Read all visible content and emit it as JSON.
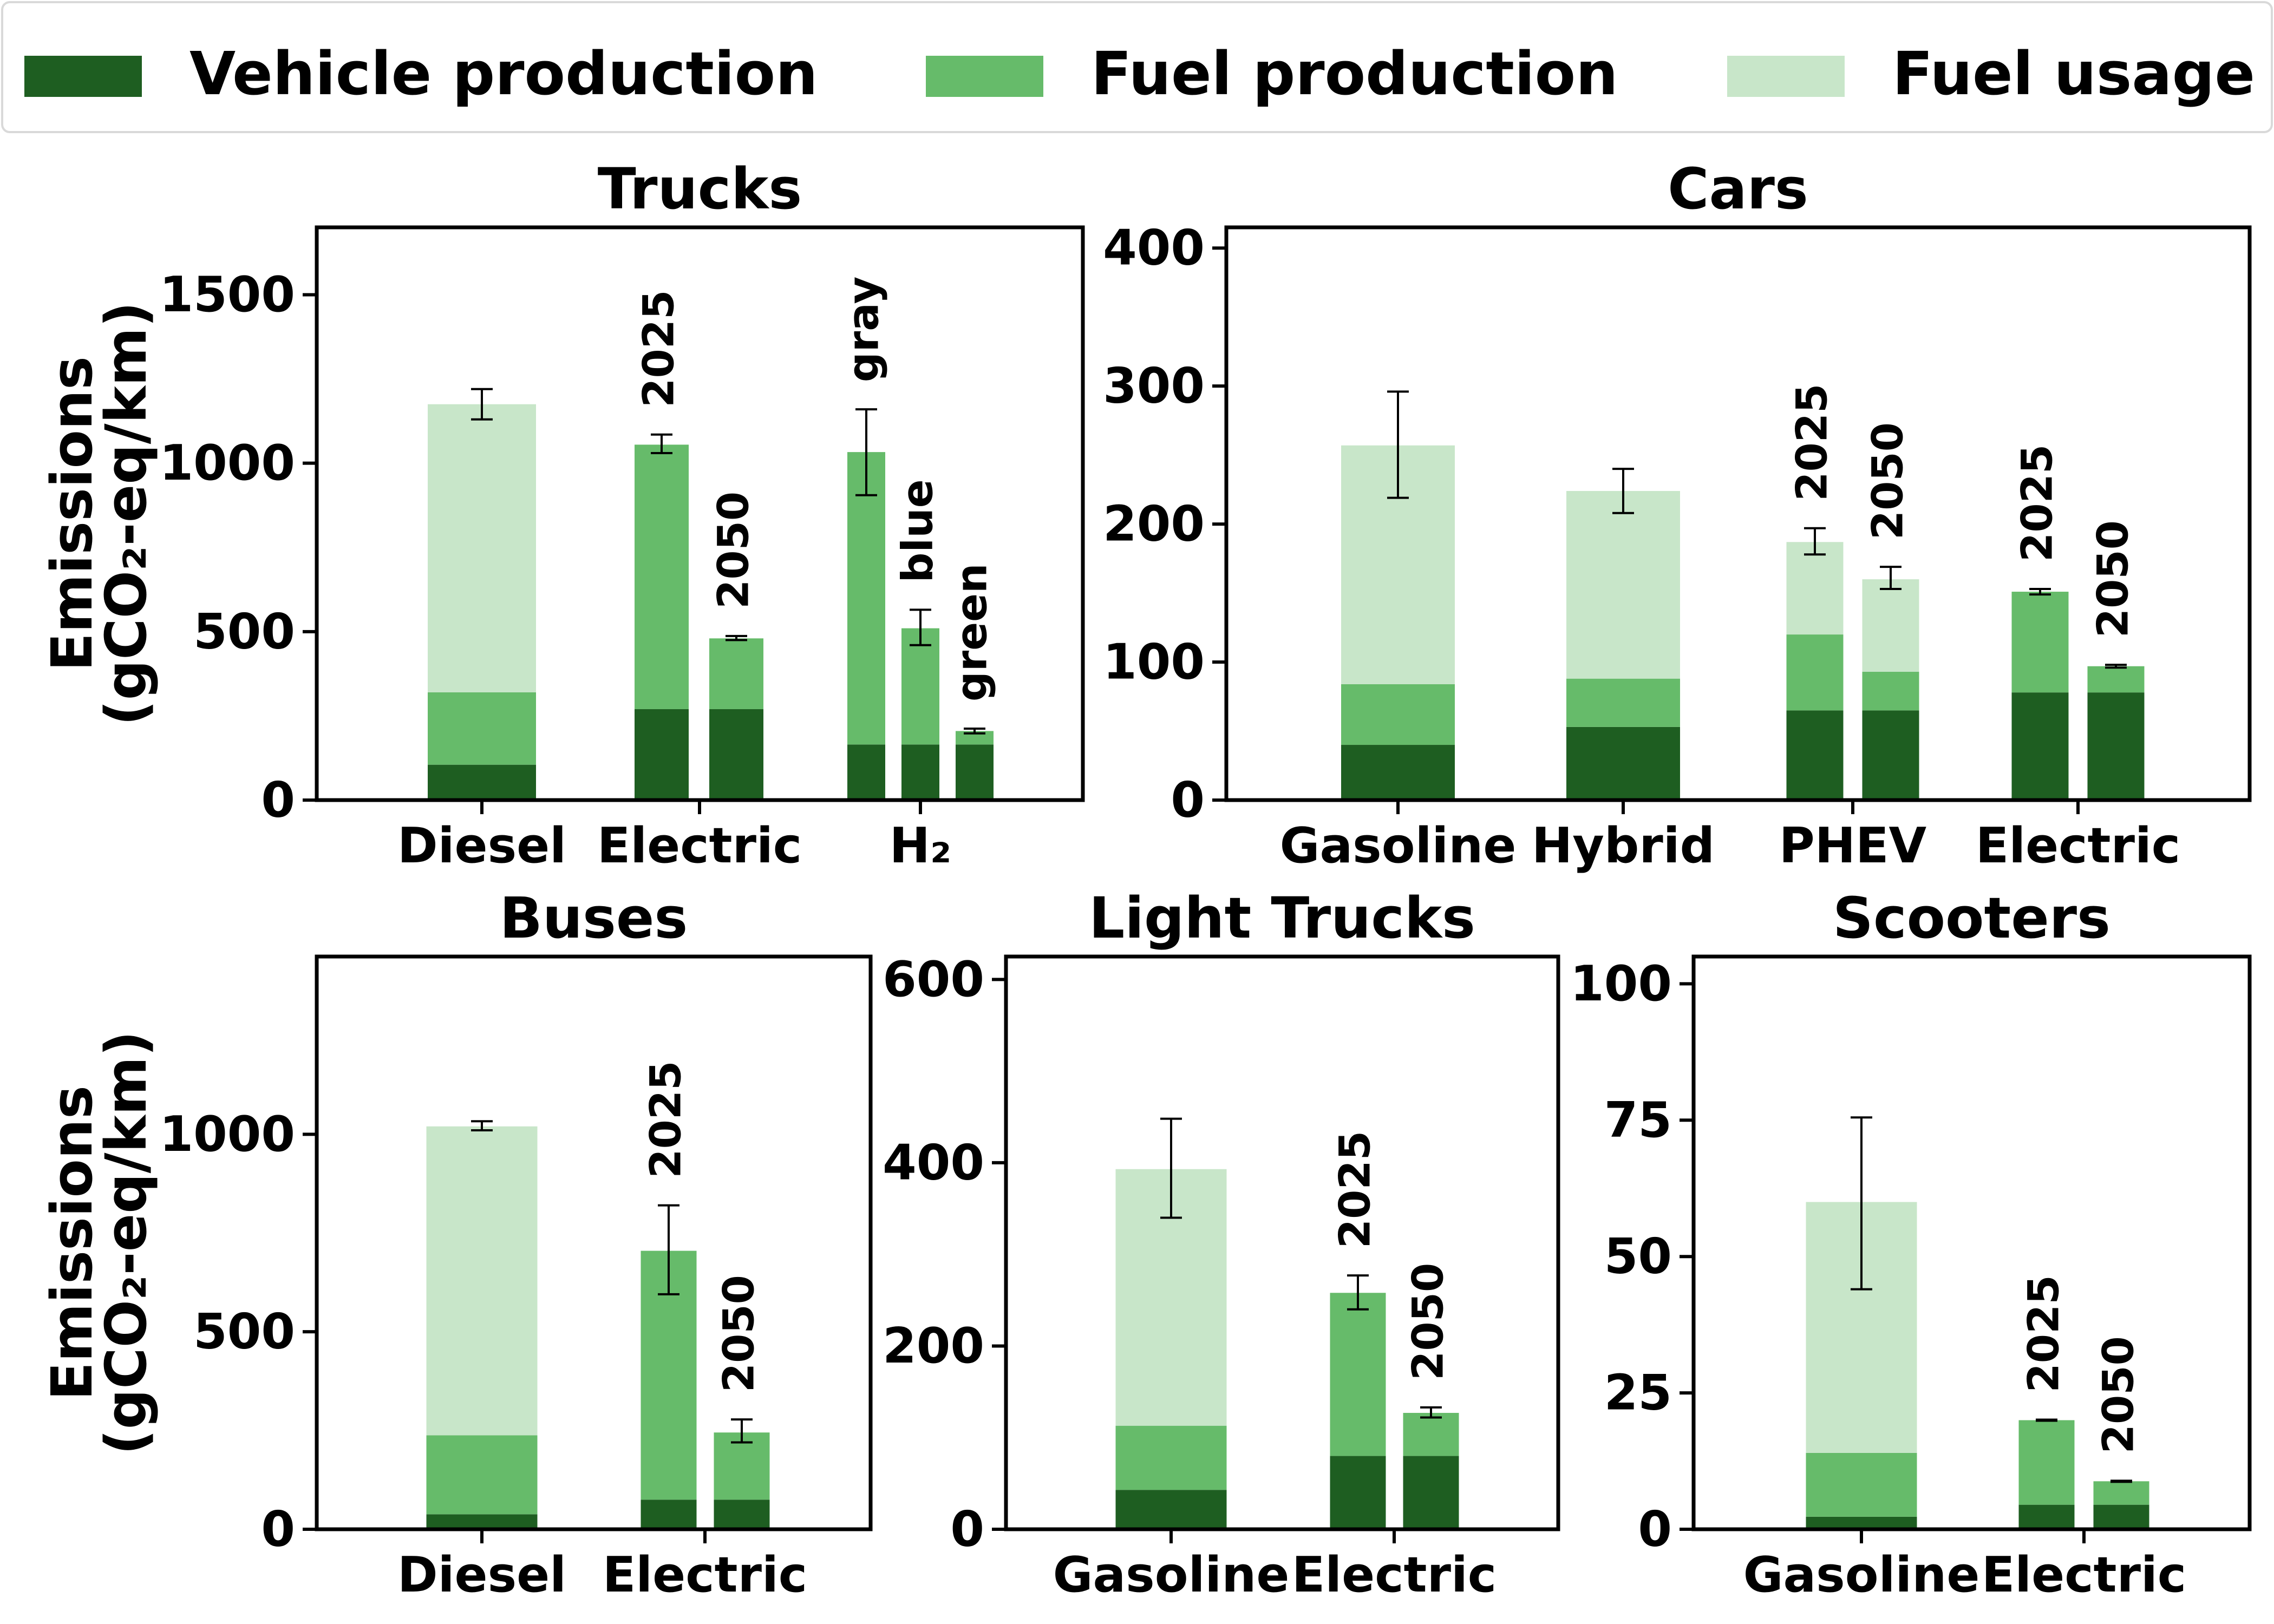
{
  "legend": {
    "placement": "top",
    "items": [
      {
        "label": "Vehicle production",
        "color": "#1e5e21"
      },
      {
        "label": "Fuel production",
        "color": "#66bb6a"
      },
      {
        "label": "Fuel usage",
        "color": "#c8e6c9"
      }
    ]
  },
  "chart_data": [
    {
      "type": "bar",
      "stacked": true,
      "title": "Trucks",
      "ylabel": [
        "Emissions",
        "(gCO₂-eq/km)"
      ],
      "ylim": [
        0,
        1700
      ],
      "yticks": [
        0,
        500,
        1000,
        1500
      ],
      "categories": [
        "Diesel",
        "Electric",
        "H₂"
      ],
      "bars": [
        {
          "category": "Diesel",
          "annotation": "",
          "vehicle_production": 105,
          "fuel_production": 215,
          "fuel_usage": 855,
          "error_low": 1130,
          "error_high": 1220
        },
        {
          "category": "Electric",
          "annotation": "2025",
          "vehicle_production": 270,
          "fuel_production": 785,
          "fuel_usage": 0,
          "error_low": 1030,
          "error_high": 1085
        },
        {
          "category": "Electric",
          "annotation": "2050",
          "vehicle_production": 270,
          "fuel_production": 210,
          "fuel_usage": 0,
          "error_low": 475,
          "error_high": 487
        },
        {
          "category": "H₂",
          "annotation": "gray",
          "vehicle_production": 165,
          "fuel_production": 868,
          "fuel_usage": 0,
          "error_low": 905,
          "error_high": 1160
        },
        {
          "category": "H₂",
          "annotation": "blue",
          "vehicle_production": 165,
          "fuel_production": 345,
          "fuel_usage": 0,
          "error_low": 460,
          "error_high": 565
        },
        {
          "category": "H₂",
          "annotation": "green",
          "vehicle_production": 165,
          "fuel_production": 40,
          "fuel_usage": 0,
          "error_low": 198,
          "error_high": 212
        }
      ]
    },
    {
      "type": "bar",
      "stacked": true,
      "title": "Cars",
      "ylabel": "",
      "ylim": [
        0,
        415
      ],
      "yticks": [
        0,
        100,
        200,
        300,
        400
      ],
      "categories": [
        "Gasoline",
        "Hybrid",
        "PHEV",
        "Electric"
      ],
      "bars": [
        {
          "category": "Gasoline",
          "annotation": "",
          "vehicle_production": 40,
          "fuel_production": 44,
          "fuel_usage": 173,
          "error_low": 219,
          "error_high": 296
        },
        {
          "category": "Hybrid",
          "annotation": "",
          "vehicle_production": 53,
          "fuel_production": 35,
          "fuel_usage": 136,
          "error_low": 208,
          "error_high": 240
        },
        {
          "category": "PHEV",
          "annotation": "2025",
          "vehicle_production": 65,
          "fuel_production": 55,
          "fuel_usage": 67,
          "error_low": 178,
          "error_high": 197
        },
        {
          "category": "PHEV",
          "annotation": "2050",
          "vehicle_production": 65,
          "fuel_production": 28,
          "fuel_usage": 67,
          "error_low": 153,
          "error_high": 169
        },
        {
          "category": "Electric",
          "annotation": "2025",
          "vehicle_production": 78,
          "fuel_production": 73,
          "fuel_usage": 0,
          "error_low": 149,
          "error_high": 153
        },
        {
          "category": "Electric",
          "annotation": "2050",
          "vehicle_production": 78,
          "fuel_production": 19,
          "fuel_usage": 0,
          "error_low": 96,
          "error_high": 98
        }
      ]
    },
    {
      "type": "bar",
      "stacked": true,
      "title": "Buses",
      "ylabel": [
        "Emissions",
        "(gCO₂-eq/km)"
      ],
      "ylim": [
        0,
        1450
      ],
      "yticks": [
        0,
        500,
        1000
      ],
      "categories": [
        "Diesel",
        "Electric"
      ],
      "bars": [
        {
          "category": "Diesel",
          "annotation": "",
          "vehicle_production": 38,
          "fuel_production": 200,
          "fuel_usage": 782,
          "error_low": 1010,
          "error_high": 1033
        },
        {
          "category": "Electric",
          "annotation": "2025",
          "vehicle_production": 75,
          "fuel_production": 630,
          "fuel_usage": 0,
          "error_low": 595,
          "error_high": 820
        },
        {
          "category": "Electric",
          "annotation": "2050",
          "vehicle_production": 75,
          "fuel_production": 170,
          "fuel_usage": 0,
          "error_low": 220,
          "error_high": 278
        }
      ]
    },
    {
      "type": "bar",
      "stacked": true,
      "title": "Light Trucks",
      "ylabel": "",
      "ylim": [
        0,
        625
      ],
      "yticks": [
        0,
        200,
        400,
        600
      ],
      "categories": [
        "Gasoline",
        "Electric"
      ],
      "bars": [
        {
          "category": "Gasoline",
          "annotation": "",
          "vehicle_production": 43,
          "fuel_production": 70,
          "fuel_usage": 280,
          "error_low": 340,
          "error_high": 448
        },
        {
          "category": "Electric",
          "annotation": "2025",
          "vehicle_production": 80,
          "fuel_production": 178,
          "fuel_usage": 0,
          "error_low": 240,
          "error_high": 277
        },
        {
          "category": "Electric",
          "annotation": "2050",
          "vehicle_production": 80,
          "fuel_production": 47,
          "fuel_usage": 0,
          "error_low": 122,
          "error_high": 133
        }
      ]
    },
    {
      "type": "bar",
      "stacked": true,
      "title": "Scooters",
      "ylabel": "",
      "ylim": [
        0,
        105
      ],
      "yticks": [
        0,
        25,
        50,
        75,
        100
      ],
      "categories": [
        "Gasoline",
        "Electric"
      ],
      "bars": [
        {
          "category": "Gasoline",
          "annotation": "",
          "vehicle_production": 2.3,
          "fuel_production": 11.7,
          "fuel_usage": 46,
          "error_low": 44,
          "error_high": 75.5
        },
        {
          "category": "Electric",
          "annotation": "2025",
          "vehicle_production": 4.5,
          "fuel_production": 15.5,
          "fuel_usage": 0,
          "error_low": 19.9,
          "error_high": 20.1
        },
        {
          "category": "Electric",
          "annotation": "2050",
          "vehicle_production": 4.5,
          "fuel_production": 4.3,
          "fuel_usage": 0,
          "error_low": 8.7,
          "error_high": 8.9
        }
      ]
    }
  ]
}
